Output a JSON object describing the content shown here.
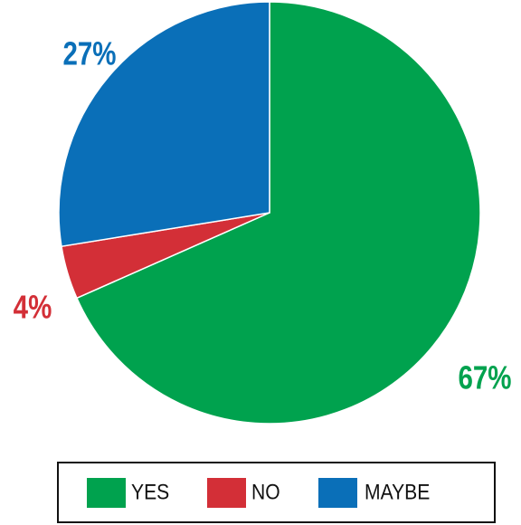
{
  "chart_data": {
    "type": "pie",
    "start": "top",
    "direction": "clockwise",
    "slices": [
      {
        "label": "YES",
        "value": 67,
        "display": "67%",
        "color": "#00a24e"
      },
      {
        "label": "NO",
        "value": 4,
        "display": "4%",
        "color": "#d32f37"
      },
      {
        "label": "MAYBE",
        "value": 27,
        "display": "27%",
        "color": "#0a6fb8"
      }
    ],
    "legend": {
      "placement": "bottom",
      "bordered": true
    }
  }
}
